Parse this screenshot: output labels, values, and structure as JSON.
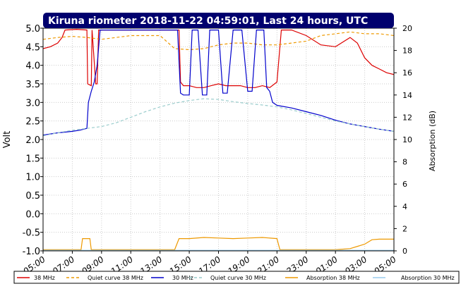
{
  "chart_data": {
    "type": "line",
    "title": "Kiruna riometer 2018-11-22 04:59:01, Last 24 hours, UTC",
    "ylabel": "Volt",
    "y2label": "Absorption (dB)",
    "ylim": [
      -1.0,
      5.0
    ],
    "y2lim": [
      0,
      20
    ],
    "yticks": [
      "5.0",
      "4.5",
      "4.0",
      "3.5",
      "3.0",
      "2.5",
      "2.0",
      "1.5",
      "1.0",
      "0.5",
      "0.0",
      "-0.5",
      "-1.0"
    ],
    "y2ticks": [
      "20",
      "18",
      "16",
      "14",
      "12",
      "10",
      "8",
      "6",
      "4",
      "2",
      "0"
    ],
    "xticks": [
      "05:00",
      "07:00",
      "09:00",
      "11:00",
      "13:00",
      "15:00",
      "17:00",
      "19:00",
      "21:00",
      "23:00",
      "01:00",
      "03:00",
      "05:00"
    ],
    "xlim": [
      0,
      24
    ],
    "grid": true,
    "legend_position": "bottom",
    "series": [
      {
        "name": "38 MHz",
        "axis": "left",
        "color": "#dd0000",
        "style": "solid",
        "points": [
          [
            0,
            4.45
          ],
          [
            0.5,
            4.5
          ],
          [
            1.0,
            4.6
          ],
          [
            1.3,
            4.75
          ],
          [
            1.5,
            4.95
          ],
          [
            2.3,
            4.97
          ],
          [
            3.0,
            4.95
          ],
          [
            3.05,
            3.5
          ],
          [
            3.3,
            3.45
          ],
          [
            3.35,
            4.95
          ],
          [
            3.6,
            3.5
          ],
          [
            3.7,
            3.5
          ],
          [
            3.8,
            4.95
          ],
          [
            9.3,
            4.95
          ],
          [
            9.4,
            3.55
          ],
          [
            9.6,
            3.45
          ],
          [
            10.0,
            3.45
          ],
          [
            10.5,
            3.4
          ],
          [
            11.0,
            3.4
          ],
          [
            11.5,
            3.45
          ],
          [
            12.0,
            3.5
          ],
          [
            12.5,
            3.45
          ],
          [
            13.0,
            3.45
          ],
          [
            13.5,
            3.45
          ],
          [
            14.0,
            3.4
          ],
          [
            14.5,
            3.4
          ],
          [
            15.0,
            3.45
          ],
          [
            15.5,
            3.4
          ],
          [
            16.0,
            3.55
          ],
          [
            16.3,
            4.95
          ],
          [
            17.0,
            4.95
          ],
          [
            18.0,
            4.8
          ],
          [
            19.0,
            4.55
          ],
          [
            20.0,
            4.5
          ],
          [
            21.0,
            4.75
          ],
          [
            21.5,
            4.6
          ],
          [
            22.0,
            4.2
          ],
          [
            22.5,
            4.0
          ],
          [
            23.0,
            3.9
          ],
          [
            23.5,
            3.8
          ],
          [
            24.0,
            3.75
          ]
        ]
      },
      {
        "name": "Quiet curve 38 MHz",
        "axis": "left",
        "color": "#ee9900",
        "style": "dashed",
        "points": [
          [
            0,
            4.7
          ],
          [
            1.0,
            4.75
          ],
          [
            2.0,
            4.78
          ],
          [
            3.0,
            4.75
          ],
          [
            4.0,
            4.7
          ],
          [
            5.0,
            4.75
          ],
          [
            6.0,
            4.8
          ],
          [
            7.0,
            4.8
          ],
          [
            8.0,
            4.8
          ],
          [
            9.0,
            4.45
          ],
          [
            10.0,
            4.42
          ],
          [
            11.0,
            4.45
          ],
          [
            12.0,
            4.55
          ],
          [
            13.0,
            4.6
          ],
          [
            14.0,
            4.6
          ],
          [
            15.0,
            4.55
          ],
          [
            16.0,
            4.55
          ],
          [
            17.0,
            4.6
          ],
          [
            18.0,
            4.65
          ],
          [
            19.0,
            4.8
          ],
          [
            20.0,
            4.85
          ],
          [
            21.0,
            4.9
          ],
          [
            22.0,
            4.85
          ],
          [
            23.0,
            4.85
          ],
          [
            24.0,
            4.8
          ]
        ]
      },
      {
        "name": "30 MHz",
        "axis": "left",
        "color": "#0000cc",
        "style": "solid",
        "points": [
          [
            0,
            2.12
          ],
          [
            0.5,
            2.15
          ],
          [
            1.0,
            2.18
          ],
          [
            1.5,
            2.2
          ],
          [
            2.0,
            2.22
          ],
          [
            2.5,
            2.25
          ],
          [
            3.0,
            2.3
          ],
          [
            3.1,
            3.0
          ],
          [
            3.3,
            3.3
          ],
          [
            3.5,
            3.55
          ],
          [
            3.7,
            4.0
          ],
          [
            3.9,
            4.95
          ],
          [
            9.2,
            4.95
          ],
          [
            9.4,
            3.25
          ],
          [
            9.6,
            3.2
          ],
          [
            10.0,
            3.2
          ],
          [
            10.2,
            4.95
          ],
          [
            10.6,
            4.95
          ],
          [
            10.9,
            3.2
          ],
          [
            11.2,
            3.2
          ],
          [
            11.4,
            4.95
          ],
          [
            12.0,
            4.95
          ],
          [
            12.3,
            3.25
          ],
          [
            12.6,
            3.25
          ],
          [
            13.0,
            4.95
          ],
          [
            13.6,
            4.95
          ],
          [
            14.0,
            3.3
          ],
          [
            14.3,
            3.3
          ],
          [
            14.6,
            4.95
          ],
          [
            15.1,
            4.95
          ],
          [
            15.3,
            3.4
          ],
          [
            15.5,
            3.3
          ],
          [
            15.7,
            3.0
          ],
          [
            16.0,
            2.92
          ],
          [
            17.0,
            2.85
          ],
          [
            18.0,
            2.75
          ],
          [
            19.0,
            2.65
          ],
          [
            20.0,
            2.52
          ],
          [
            21.0,
            2.42
          ],
          [
            22.0,
            2.35
          ],
          [
            23.0,
            2.28
          ],
          [
            24.0,
            2.22
          ]
        ]
      },
      {
        "name": "Quiet curve 30 MHz",
        "axis": "left",
        "color": "#99cccc",
        "style": "dashed",
        "points": [
          [
            0,
            2.1
          ],
          [
            1.0,
            2.18
          ],
          [
            2.0,
            2.25
          ],
          [
            3.0,
            2.3
          ],
          [
            4.0,
            2.35
          ],
          [
            5.0,
            2.45
          ],
          [
            6.0,
            2.6
          ],
          [
            7.0,
            2.75
          ],
          [
            8.0,
            2.88
          ],
          [
            9.0,
            2.98
          ],
          [
            10.0,
            3.05
          ],
          [
            11.0,
            3.1
          ],
          [
            12.0,
            3.08
          ],
          [
            13.0,
            3.02
          ],
          [
            14.0,
            2.97
          ],
          [
            15.0,
            2.93
          ],
          [
            16.0,
            2.88
          ],
          [
            17.0,
            2.8
          ],
          [
            18.0,
            2.7
          ],
          [
            19.0,
            2.6
          ],
          [
            20.0,
            2.5
          ],
          [
            21.0,
            2.42
          ],
          [
            22.0,
            2.35
          ],
          [
            23.0,
            2.28
          ],
          [
            24.0,
            2.22
          ]
        ]
      },
      {
        "name": "Absorption 38 MHz",
        "axis": "right",
        "color": "#ee9900",
        "style": "solid",
        "points": [
          [
            0,
            0.1
          ],
          [
            1.0,
            0.1
          ],
          [
            2.0,
            0.1
          ],
          [
            2.6,
            0.1
          ],
          [
            2.7,
            1.1
          ],
          [
            3.2,
            1.1
          ],
          [
            3.3,
            0.1
          ],
          [
            9.0,
            0.1
          ],
          [
            9.3,
            1.1
          ],
          [
            10.0,
            1.1
          ],
          [
            11.0,
            1.2
          ],
          [
            12.0,
            1.15
          ],
          [
            13.0,
            1.1
          ],
          [
            14.0,
            1.15
          ],
          [
            15.0,
            1.2
          ],
          [
            16.0,
            1.1
          ],
          [
            16.2,
            0.1
          ],
          [
            20.0,
            0.1
          ],
          [
            21.0,
            0.2
          ],
          [
            22.0,
            0.6
          ],
          [
            22.5,
            1.0
          ],
          [
            23.0,
            1.05
          ],
          [
            24.0,
            1.05
          ]
        ]
      },
      {
        "name": "Absorption 30 MHz",
        "axis": "right",
        "color": "#99ccee",
        "style": "solid",
        "points": [
          [
            0,
            0.05
          ],
          [
            24.0,
            0.05
          ]
        ]
      }
    ]
  }
}
